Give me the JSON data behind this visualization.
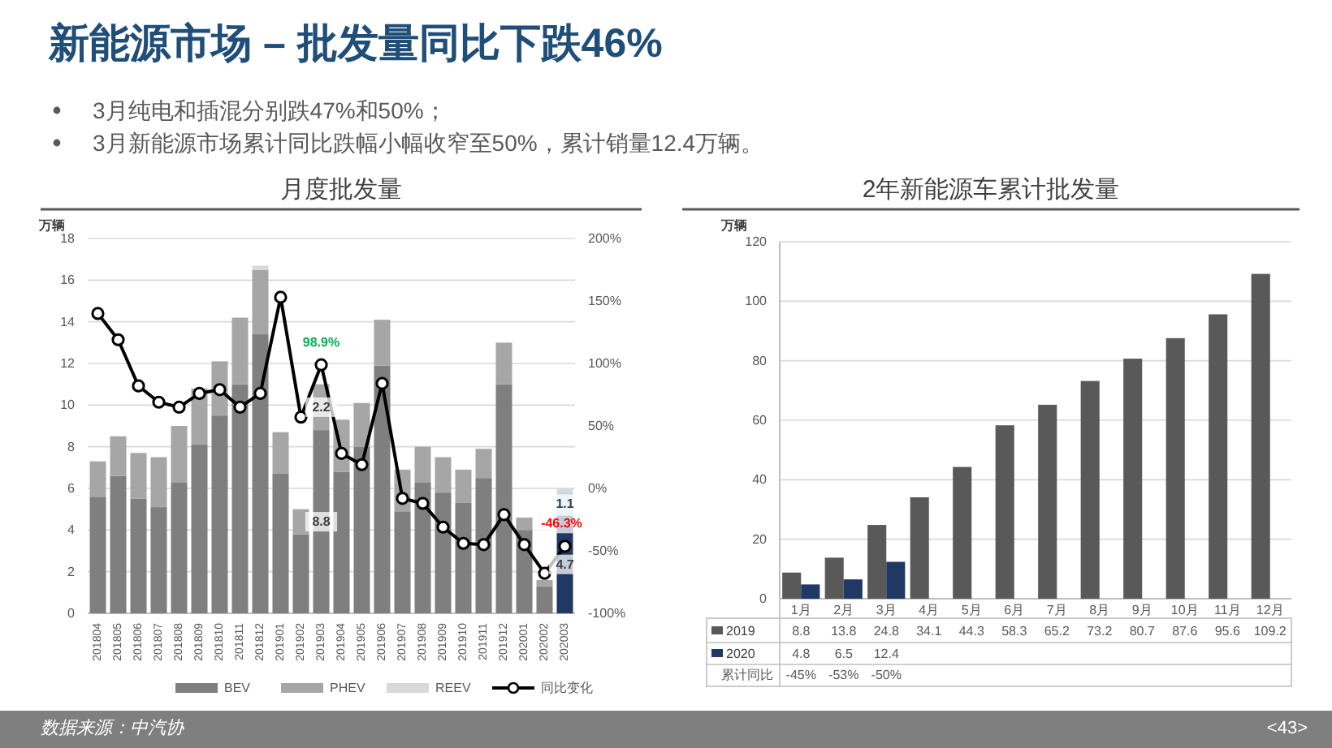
{
  "chart_data": [
    {
      "type": "other",
      "title": "新能源市场 – 批发量同比下跌46%",
      "annotations": [
        "3月纯电和插混分别跌47%和50%；",
        "3月新能源市场累计同比跌幅小幅收窄至50%，累计销量12.4万辆。"
      ]
    },
    {
      "type": "bar",
      "title": "月度批发量",
      "ylabel": "万辆",
      "stacked": true,
      "grid": "y",
      "legend": "bottom",
      "categories": [
        "201804",
        "201805",
        "201806",
        "201807",
        "201808",
        "201809",
        "201810",
        "201811",
        "201812",
        "201901",
        "201902",
        "201903",
        "201904",
        "201905",
        "201906",
        "201907",
        "201908",
        "201909",
        "201910",
        "201911",
        "201912",
        "202001",
        "202002",
        "202003"
      ],
      "ylim": [
        0,
        18
      ],
      "yticks": [
        0,
        2,
        4,
        6,
        8,
        10,
        12,
        14,
        16,
        18
      ],
      "y2lim": [
        -100,
        200
      ],
      "y2ticks": [
        {
          "value": -100,
          "label": "-100%"
        },
        {
          "value": -50,
          "label": "-50%"
        },
        {
          "value": 0,
          "label": "0%"
        },
        {
          "value": 50,
          "label": "50%"
        },
        {
          "value": 100,
          "label": "100%"
        },
        {
          "value": 150,
          "label": "150%"
        },
        {
          "value": 200,
          "label": "200%"
        }
      ],
      "series": [
        {
          "name": "BEV",
          "color": "#7f7f7f",
          "colors": [
            "#7f7f7f",
            "#7f7f7f",
            "#7f7f7f",
            "#7f7f7f",
            "#7f7f7f",
            "#7f7f7f",
            "#7f7f7f",
            "#7f7f7f",
            "#7f7f7f",
            "#7f7f7f",
            "#7f7f7f",
            "#7f7f7f",
            "#7f7f7f",
            "#7f7f7f",
            "#7f7f7f",
            "#7f7f7f",
            "#7f7f7f",
            "#7f7f7f",
            "#7f7f7f",
            "#7f7f7f",
            "#7f7f7f",
            "#7f7f7f",
            "#7f7f7f",
            "#1f3864"
          ],
          "values": [
            5.6,
            6.6,
            5.5,
            5.1,
            6.3,
            8.1,
            9.5,
            11.0,
            13.4,
            6.7,
            3.8,
            8.8,
            6.8,
            8.0,
            11.9,
            4.9,
            6.3,
            5.8,
            5.3,
            6.5,
            11.0,
            4.0,
            1.3,
            4.7
          ],
          "value_labels": [
            null,
            null,
            null,
            null,
            null,
            null,
            null,
            null,
            null,
            null,
            null,
            "8.8",
            null,
            null,
            null,
            null,
            null,
            null,
            null,
            null,
            null,
            null,
            null,
            "4.7"
          ]
        },
        {
          "name": "PHEV",
          "color": "#a6a6a6",
          "colors": [
            "#a6a6a6",
            "#a6a6a6",
            "#a6a6a6",
            "#a6a6a6",
            "#a6a6a6",
            "#a6a6a6",
            "#a6a6a6",
            "#a6a6a6",
            "#a6a6a6",
            "#a6a6a6",
            "#a6a6a6",
            "#a6a6a6",
            "#a6a6a6",
            "#a6a6a6",
            "#a6a6a6",
            "#a6a6a6",
            "#a6a6a6",
            "#a6a6a6",
            "#a6a6a6",
            "#a6a6a6",
            "#a6a6a6",
            "#a6a6a6",
            "#a6a6a6",
            "#bdd7ee"
          ],
          "values": [
            1.7,
            1.9,
            2.2,
            2.4,
            2.7,
            2.7,
            2.6,
            3.2,
            3.1,
            2.0,
            1.2,
            2.2,
            2.5,
            2.1,
            2.2,
            2.0,
            1.7,
            1.7,
            1.6,
            1.4,
            2.0,
            0.6,
            0.3,
            1.1
          ],
          "value_labels": [
            null,
            null,
            null,
            null,
            null,
            null,
            null,
            null,
            null,
            null,
            null,
            "2.2",
            null,
            null,
            null,
            null,
            null,
            null,
            null,
            null,
            null,
            null,
            null,
            "1.1"
          ]
        },
        {
          "name": "REEV",
          "color": "#d9d9d9",
          "values": [
            0,
            0,
            0,
            0,
            0,
            0,
            0,
            0,
            0.2,
            0,
            0,
            0,
            0,
            0,
            0,
            0,
            0,
            0,
            0,
            0,
            0,
            null,
            0,
            0.2
          ]
        },
        {
          "name": "同比变化",
          "type": "line",
          "axis": "y2",
          "color": "#000000",
          "marker": "circle",
          "values": [
            140,
            119,
            82,
            69,
            65,
            76,
            79,
            65,
            76,
            153,
            57,
            98.9,
            28,
            19,
            84,
            -8,
            -12,
            -31,
            -44,
            -45,
            -21,
            -45,
            -68,
            -46.3
          ],
          "value_labels": [
            null,
            null,
            null,
            null,
            null,
            null,
            null,
            null,
            null,
            null,
            null,
            "98.9%",
            null,
            null,
            null,
            null,
            null,
            null,
            null,
            null,
            null,
            null,
            null,
            "-46.3%"
          ]
        }
      ]
    },
    {
      "type": "bar",
      "title": "2年新能源车累计批发量",
      "ylabel": "万辆",
      "grid": "y",
      "legend": "bottom",
      "data_labels": true,
      "categories": [
        "1月",
        "2月",
        "3月",
        "4月",
        "5月",
        "6月",
        "7月",
        "8月",
        "9月",
        "10月",
        "11月",
        "12月"
      ],
      "ylim": [
        0,
        120
      ],
      "yticks": [
        0,
        20,
        40,
        60,
        80,
        100,
        120
      ],
      "series": [
        {
          "name": "2019",
          "color": "#595959",
          "values": [
            8.8,
            13.8,
            24.8,
            34.1,
            44.3,
            58.3,
            65.2,
            73.2,
            80.7,
            87.6,
            95.6,
            109.2
          ]
        },
        {
          "name": "2020",
          "color": "#1f3864",
          "values": [
            4.8,
            6.5,
            12.4,
            null,
            null,
            null,
            null,
            null,
            null,
            null,
            null,
            null
          ]
        }
      ],
      "annotations": [
        "累计同比",
        "-45%",
        "-53%",
        "-50%"
      ]
    },
    {
      "type": "other",
      "annotations": [
        "数据来源：中汽协",
        "<43>"
      ]
    }
  ]
}
